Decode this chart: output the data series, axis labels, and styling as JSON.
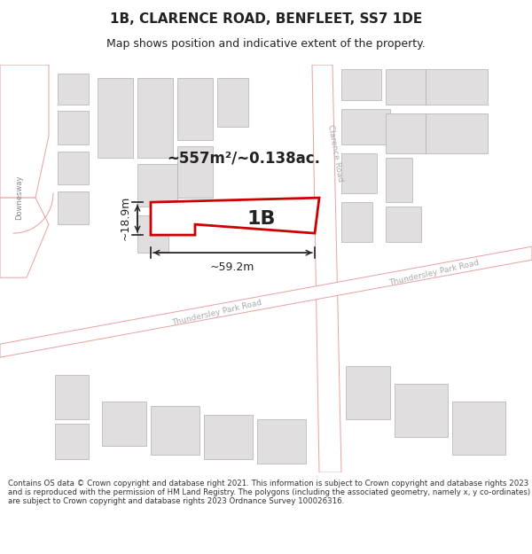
{
  "title": "1B, CLARENCE ROAD, BENFLEET, SS7 1DE",
  "subtitle": "Map shows position and indicative extent of the property.",
  "footer": "Contains OS data © Crown copyright and database right 2021. This information is subject to Crown copyright and database rights 2023 and is reproduced with the permission of HM Land Registry. The polygons (including the associated geometry, namely x, y co-ordinates) are subject to Crown copyright and database rights 2023 Ordnance Survey 100026316.",
  "area_label": "~557m²/~0.138ac.",
  "width_label": "~59.2m",
  "height_label": "~18.9m",
  "plot_label": "1B",
  "bg_color": "#f5f0f0",
  "map_bg": "#ffffff",
  "building_fill": "#e0dede",
  "building_stroke": "#b0b0b0",
  "highlight_fill": "#ffffff",
  "highlight_stroke": "#cc0000",
  "boundary_color": "#e8a0a0",
  "road_label_color": "#aaaaaa",
  "text_color": "#222222",
  "footer_color": "#333333",
  "title_fontsize": 11,
  "subtitle_fontsize": 9,
  "footer_fontsize": 6.2
}
